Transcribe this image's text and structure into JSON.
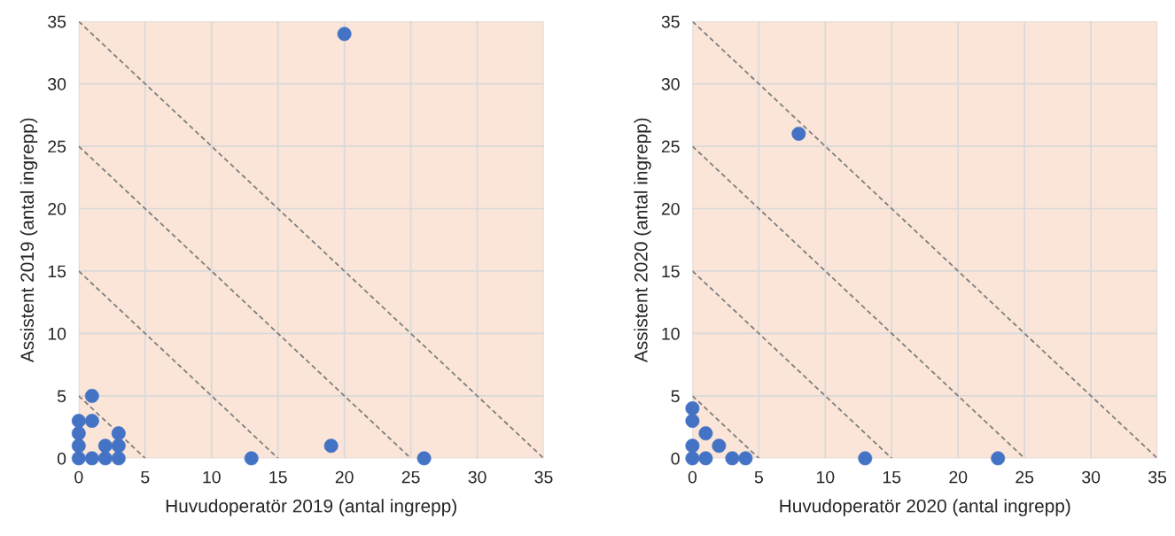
{
  "chart_data": [
    {
      "type": "scatter",
      "xlabel": "Huvudoperatör 2019 (antal ingrepp)",
      "ylabel": "Assistent 2019 (antal ingrepp)",
      "xlim": [
        0,
        35
      ],
      "ylim": [
        0,
        35
      ],
      "xticks": [
        0,
        5,
        10,
        15,
        20,
        25,
        30,
        35
      ],
      "yticks": [
        0,
        5,
        10,
        15,
        20,
        25,
        30,
        35
      ],
      "grid": true,
      "series": [
        {
          "color": "#4472c4",
          "marker": "circle",
          "x": [
            0,
            0,
            0,
            0,
            1,
            1,
            1,
            2,
            2,
            3,
            3,
            3,
            13,
            19,
            20,
            26
          ],
          "values": [
            0,
            1,
            2,
            3,
            0,
            3,
            5,
            0,
            1,
            0,
            1,
            2,
            0,
            1,
            34,
            0
          ]
        },
        {
          "type": "line",
          "color": "#7f7f7f",
          "line_style": "dashed",
          "marker": "none",
          "x": [
            0,
            5
          ],
          "values": [
            5,
            0
          ]
        },
        {
          "type": "line",
          "color": "#7f7f7f",
          "line_style": "dashed",
          "marker": "none",
          "x": [
            0,
            15
          ],
          "values": [
            15,
            0
          ]
        },
        {
          "type": "line",
          "color": "#7f7f7f",
          "line_style": "dashed",
          "marker": "none",
          "x": [
            0,
            25
          ],
          "values": [
            25,
            0
          ]
        },
        {
          "type": "line",
          "color": "#7f7f7f",
          "line_style": "dashed",
          "marker": "none",
          "x": [
            0,
            35
          ],
          "values": [
            35,
            0
          ]
        }
      ]
    },
    {
      "type": "scatter",
      "xlabel": "Huvudoperatör 2020 (antal ingrepp)",
      "ylabel": "Assistent 2020 (antal ingrepp)",
      "xlim": [
        0,
        35
      ],
      "ylim": [
        0,
        35
      ],
      "xticks": [
        0,
        5,
        10,
        15,
        20,
        25,
        30,
        35
      ],
      "yticks": [
        0,
        5,
        10,
        15,
        20,
        25,
        30,
        35
      ],
      "grid": true,
      "series": [
        {
          "color": "#4472c4",
          "marker": "circle",
          "x": [
            0,
            0,
            0,
            0,
            1,
            1,
            2,
            3,
            4,
            13,
            23,
            8
          ],
          "values": [
            0,
            1,
            3,
            4,
            0,
            2,
            1,
            0,
            0,
            0,
            0,
            26
          ]
        },
        {
          "type": "line",
          "color": "#7f7f7f",
          "line_style": "dashed",
          "marker": "none",
          "x": [
            0,
            5
          ],
          "values": [
            5,
            0
          ]
        },
        {
          "type": "line",
          "color": "#7f7f7f",
          "line_style": "dashed",
          "marker": "none",
          "x": [
            0,
            15
          ],
          "values": [
            15,
            0
          ]
        },
        {
          "type": "line",
          "color": "#7f7f7f",
          "line_style": "dashed",
          "marker": "none",
          "x": [
            0,
            25
          ],
          "values": [
            25,
            0
          ]
        },
        {
          "type": "line",
          "color": "#7f7f7f",
          "line_style": "dashed",
          "marker": "none",
          "x": [
            0,
            35
          ],
          "values": [
            35,
            0
          ]
        }
      ]
    }
  ]
}
